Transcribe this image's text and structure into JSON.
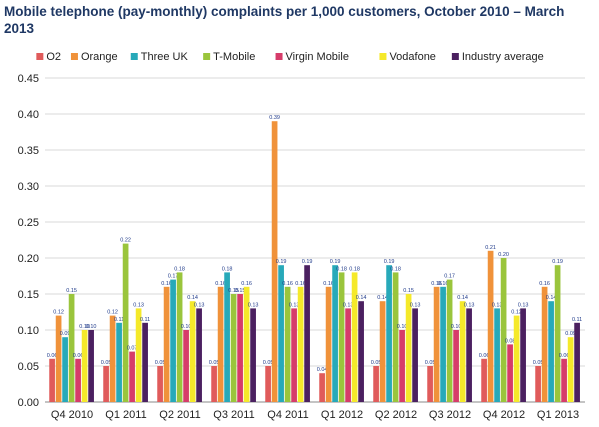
{
  "chart_data": {
    "type": "bar",
    "title": "Mobile telephone (pay-monthly) complaints per 1,000 customers, October 2010 – March 2013",
    "xlabel": "",
    "ylabel": "",
    "ylim": [
      0,
      0.45
    ],
    "yticks": [
      "0.00",
      "0.05",
      "0.10",
      "0.15",
      "0.20",
      "0.25",
      "0.30",
      "0.35",
      "0.40",
      "0.45"
    ],
    "grid": true,
    "legend_position": "top",
    "categories": [
      "Q4 2010",
      "Q1 2011",
      "Q2 2011",
      "Q3 2011",
      "Q4 2011",
      "Q1 2012",
      "Q2 2012",
      "Q3 2012",
      "Q4 2012",
      "Q1 2013"
    ],
    "series": [
      {
        "name": "O2",
        "color": "#e05b5b",
        "values": [
          0.06,
          0.05,
          0.05,
          0.05,
          0.05,
          0.04,
          0.05,
          0.05,
          0.06,
          0.05
        ],
        "labels": [
          "0.06",
          "0.05",
          "0.05",
          "0.05",
          "0.05",
          "0.04",
          "0.05",
          "0.05",
          "0.06",
          "0.05"
        ]
      },
      {
        "name": "Orange",
        "color": "#f0923a",
        "values": [
          0.12,
          0.12,
          0.16,
          0.16,
          0.39,
          0.16,
          0.14,
          0.16,
          0.21,
          0.16
        ],
        "labels": [
          "0.12",
          "0.12",
          "0.16",
          "0.16",
          "0.39",
          "0.16",
          "0.14",
          "0.16",
          "0.21",
          "0.16"
        ]
      },
      {
        "name": "Three UK",
        "color": "#27a9b9",
        "values": [
          0.09,
          0.11,
          0.17,
          0.18,
          0.19,
          0.19,
          0.19,
          0.16,
          0.13,
          0.14
        ],
        "labels": [
          "0.09",
          "0.11",
          "0.17",
          "0.18",
          "0.19",
          "0.19",
          "0.19",
          "0.16",
          "0.13",
          "0.14"
        ]
      },
      {
        "name": "T-Mobile",
        "color": "#9ac53c",
        "values": [
          0.15,
          0.22,
          0.18,
          0.15,
          0.16,
          0.18,
          0.18,
          0.17,
          0.2,
          0.19
        ],
        "labels": [
          "0.15",
          "0.22",
          "0.18",
          "0.15",
          "0.16",
          "0.18",
          "0.18",
          "0.17",
          "0.20",
          "0.19"
        ]
      },
      {
        "name": "Virgin Mobile",
        "color": "#d63c6a",
        "values": [
          0.06,
          0.07,
          0.1,
          0.15,
          0.13,
          0.13,
          0.1,
          0.1,
          0.08,
          0.06
        ],
        "labels": [
          "0.06",
          "0.07",
          "0.10",
          "0.15",
          "0.13",
          "0.13",
          "0.10",
          "0.10",
          "0.08",
          "0.06"
        ]
      },
      {
        "name": "Vodafone",
        "color": "#f5e92a",
        "values": [
          0.1,
          0.13,
          0.14,
          0.16,
          0.16,
          0.18,
          0.15,
          0.14,
          0.12,
          0.09
        ],
        "labels": [
          "0.10",
          "0.13",
          "0.14",
          "0.16",
          "0.16",
          "0.18",
          "0.15",
          "0.14",
          "0.12",
          "0.09"
        ]
      },
      {
        "name": "Industry average",
        "color": "#4b2060",
        "values": [
          0.1,
          0.11,
          0.13,
          0.13,
          0.19,
          0.14,
          0.13,
          0.13,
          0.13,
          0.11
        ],
        "labels": [
          "0.10",
          "0.11",
          "0.13",
          "0.13",
          "0.19",
          "0.14",
          "0.13",
          "0.13",
          "0.13",
          "0.11"
        ]
      }
    ]
  }
}
